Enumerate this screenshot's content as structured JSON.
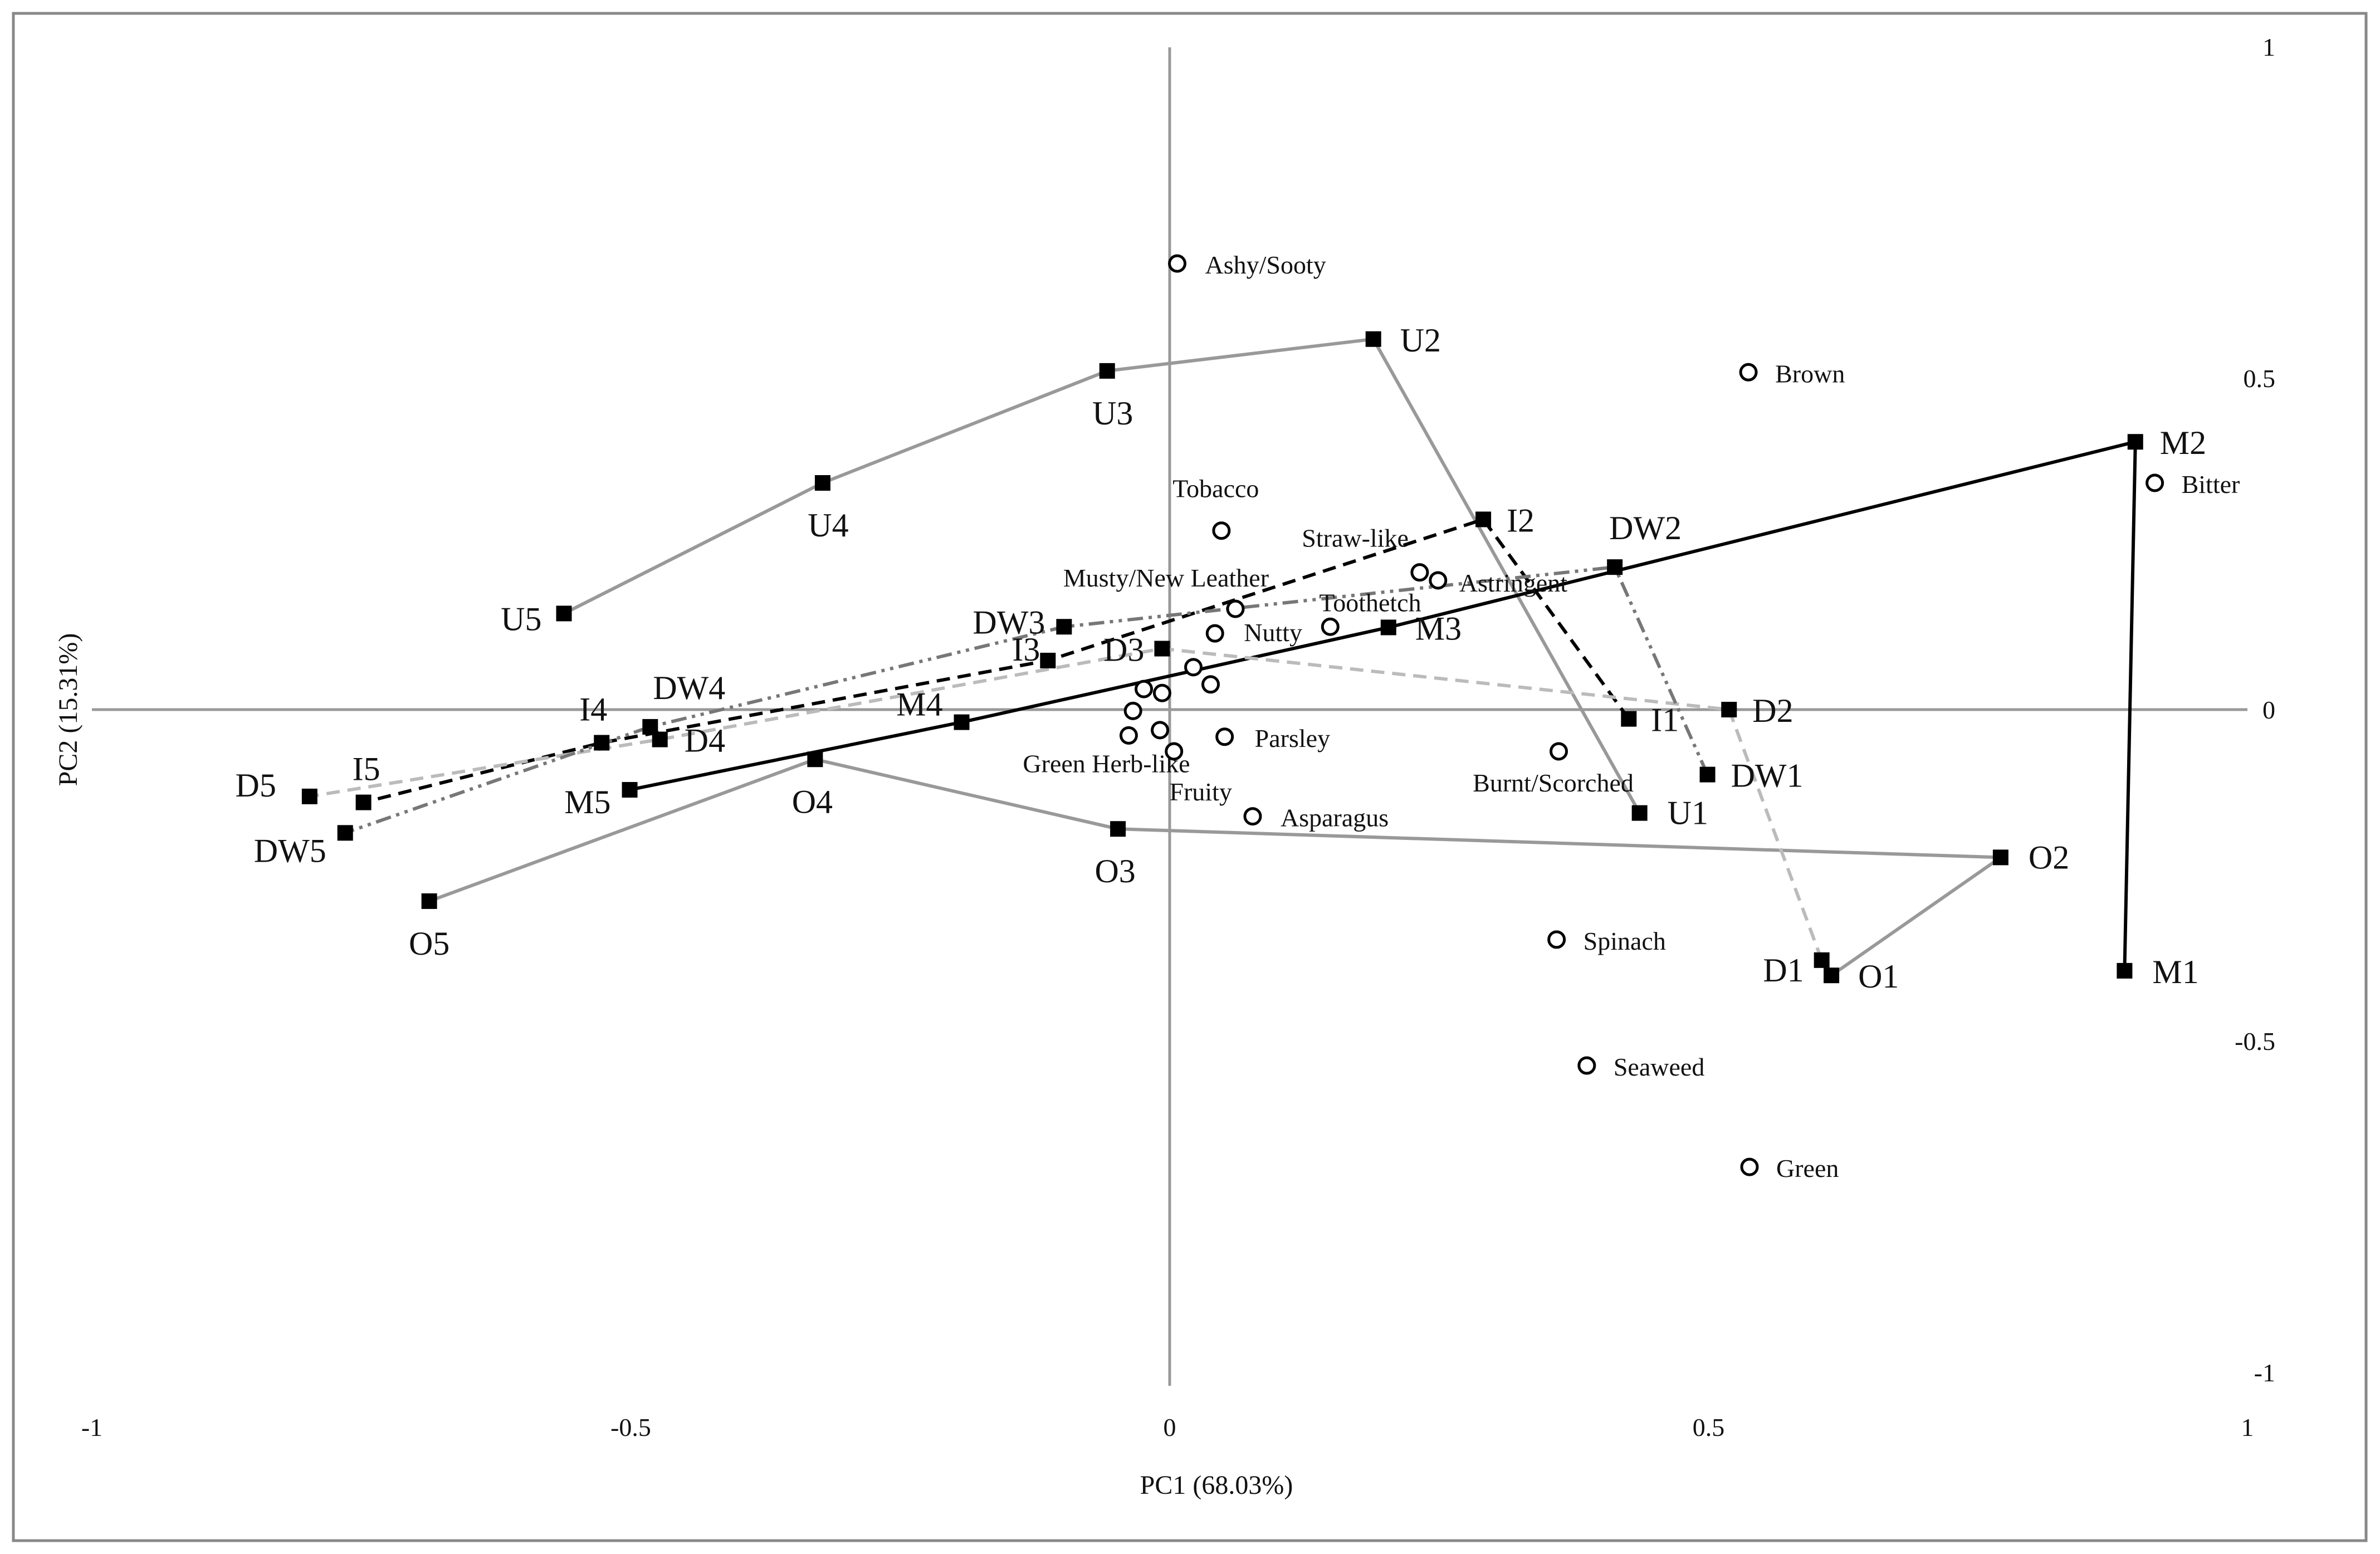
{
  "chart_data": {
    "type": "scatter",
    "xlabel": "PC1 (68.03%)",
    "ylabel": "PC2 (15.31%)",
    "xlim": [
      -1,
      1
    ],
    "ylim": [
      -1,
      1
    ],
    "x_ticks": [
      {
        "value": -1,
        "label": "-1"
      },
      {
        "value": -0.5,
        "label": "-0.5"
      },
      {
        "value": 0,
        "label": "0"
      },
      {
        "value": 0.5,
        "label": "0.5"
      },
      {
        "value": 1,
        "label": "1"
      }
    ],
    "y_ticks": [
      {
        "value": 1,
        "label": "1"
      },
      {
        "value": 0.5,
        "label": "0.5"
      },
      {
        "value": 0,
        "label": "0"
      },
      {
        "value": -0.5,
        "label": "-0.5"
      },
      {
        "value": -1,
        "label": "-1"
      }
    ],
    "grid": false,
    "legend": "none",
    "sample_series": [
      {
        "group": "U",
        "color": "#999999",
        "dash": "solid",
        "points": [
          {
            "label": "U1",
            "x": 0.436,
            "y": -0.156
          },
          {
            "label": "U2",
            "x": 0.189,
            "y": 0.559
          },
          {
            "label": "U3",
            "x": -0.058,
            "y": 0.511
          },
          {
            "label": "U4",
            "x": -0.322,
            "y": 0.342
          },
          {
            "label": "U5",
            "x": -0.562,
            "y": 0.145
          }
        ]
      },
      {
        "group": "O",
        "color": "#999999",
        "dash": "solid",
        "points": [
          {
            "label": "O1",
            "x": 0.614,
            "y": -0.401
          },
          {
            "label": "O2",
            "x": 0.771,
            "y": -0.223
          },
          {
            "label": "O3",
            "x": -0.048,
            "y": -0.18
          },
          {
            "label": "O4",
            "x": -0.329,
            "y": -0.075
          },
          {
            "label": "O5",
            "x": -0.687,
            "y": -0.289
          }
        ]
      },
      {
        "group": "M",
        "color": "#000000",
        "dash": "solid",
        "points": [
          {
            "label": "M1",
            "x": 0.886,
            "y": -0.394
          },
          {
            "label": "M2",
            "x": 0.896,
            "y": 0.404
          },
          {
            "label": "M3",
            "x": 0.203,
            "y": 0.124
          },
          {
            "label": "M4",
            "x": -0.193,
            "y": -0.019
          },
          {
            "label": "M5",
            "x": -0.501,
            "y": -0.121
          }
        ]
      },
      {
        "group": "I",
        "color": "#000000",
        "dash": "dashed",
        "points": [
          {
            "label": "I1",
            "x": 0.426,
            "y": -0.014
          },
          {
            "label": "I2",
            "x": 0.291,
            "y": 0.287
          },
          {
            "label": "I3",
            "x": -0.113,
            "y": 0.074
          },
          {
            "label": "I4",
            "x": -0.527,
            "y": -0.05
          },
          {
            "label": "I5",
            "x": -0.748,
            "y": -0.14
          }
        ]
      },
      {
        "group": "D",
        "color": "#bbbbbb",
        "dash": "dashed",
        "points": [
          {
            "label": "D1",
            "x": 0.605,
            "y": -0.378
          },
          {
            "label": "D2",
            "x": 0.519,
            "y": 0.0
          },
          {
            "label": "D3",
            "x": -0.007,
            "y": 0.092
          },
          {
            "label": "D4",
            "x": -0.473,
            "y": -0.045
          },
          {
            "label": "D5",
            "x": -0.798,
            "y": -0.131
          }
        ]
      },
      {
        "group": "DW",
        "color": "#777777",
        "dash": "dashdotdot",
        "points": [
          {
            "label": "DW1",
            "x": 0.499,
            "y": -0.098
          },
          {
            "label": "DW2",
            "x": 0.413,
            "y": 0.215
          },
          {
            "label": "DW3",
            "x": -0.098,
            "y": 0.125
          },
          {
            "label": "DW4",
            "x": -0.482,
            "y": -0.026
          },
          {
            "label": "DW5",
            "x": -0.765,
            "y": -0.186
          }
        ]
      }
    ],
    "attributes": [
      {
        "label": "Ashy/Sooty",
        "x": 0.007,
        "y": 0.673
      },
      {
        "label": "Brown",
        "x": 0.537,
        "y": 0.509
      },
      {
        "label": "Bitter",
        "x": 0.914,
        "y": 0.342
      },
      {
        "label": "Tobacco",
        "x": 0.048,
        "y": 0.27
      },
      {
        "label": "Straw-like",
        "x": 0.232,
        "y": 0.207
      },
      {
        "label": "Astringent",
        "x": 0.249,
        "y": 0.195
      },
      {
        "label": "Musty/New Leather",
        "x": 0.061,
        "y": 0.152
      },
      {
        "label": "Toothetch",
        "x": 0.149,
        "y": 0.125
      },
      {
        "label": "Nutty",
        "x": 0.042,
        "y": 0.115
      },
      {
        "label": "",
        "x": 0.022,
        "y": 0.064
      },
      {
        "label": "",
        "x": 0.038,
        "y": 0.038
      },
      {
        "label": "",
        "x": -0.024,
        "y": 0.031
      },
      {
        "label": "",
        "x": -0.007,
        "y": 0.025
      },
      {
        "label": "",
        "x": -0.034,
        "y": -0.002
      },
      {
        "label": "Green Herb-like",
        "x": -0.038,
        "y": -0.039
      },
      {
        "label": "",
        "x": -0.009,
        "y": -0.031
      },
      {
        "label": "Parsley",
        "x": 0.051,
        "y": -0.041
      },
      {
        "label": "Fruity",
        "x": 0.004,
        "y": -0.063
      },
      {
        "label": "Burnt/Scorched",
        "x": 0.361,
        "y": -0.063
      },
      {
        "label": "Asparagus",
        "x": 0.077,
        "y": -0.161
      },
      {
        "label": "Spinach",
        "x": 0.359,
        "y": -0.347
      },
      {
        "label": "Seaweed",
        "x": 0.387,
        "y": -0.537
      },
      {
        "label": "Green",
        "x": 0.538,
        "y": -0.69
      }
    ]
  }
}
